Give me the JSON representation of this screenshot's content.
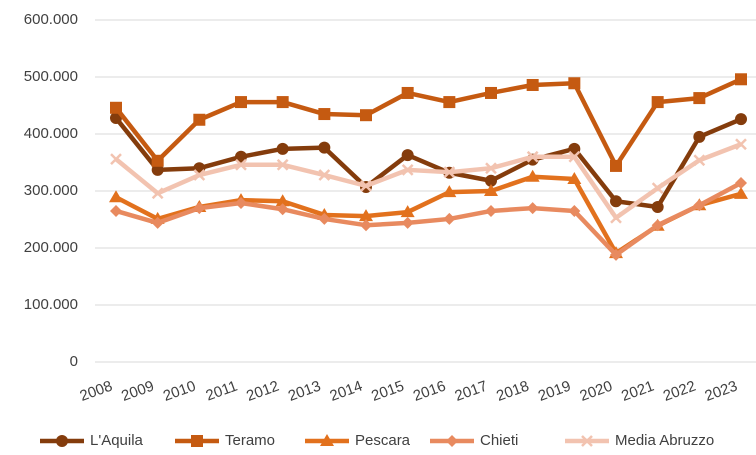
{
  "chart_data": {
    "type": "line",
    "x": [
      "2008",
      "2009",
      "2010",
      "2011",
      "2012",
      "2013",
      "2014",
      "2015",
      "2016",
      "2017",
      "2018",
      "2019",
      "2020",
      "2021",
      "2022",
      "2023"
    ],
    "series": [
      {
        "name": "L'Aquila",
        "color": "#843c0c",
        "marker": "circle",
        "values": [
          428000,
          337000,
          340000,
          360000,
          374000,
          376000,
          307000,
          363000,
          332000,
          318000,
          355000,
          374000,
          282000,
          272000,
          395000,
          426000
        ]
      },
      {
        "name": "Teramo",
        "color": "#c55a11",
        "marker": "square",
        "values": [
          446000,
          353000,
          425000,
          456000,
          456000,
          435000,
          433000,
          472000,
          456000,
          472000,
          486000,
          489000,
          344000,
          456000,
          463000,
          496000
        ]
      },
      {
        "name": "Pescara",
        "color": "#e2711d",
        "marker": "triangle",
        "values": [
          289000,
          251000,
          272000,
          284000,
          282000,
          258000,
          256000,
          263000,
          298000,
          300000,
          325000,
          321000,
          191000,
          239000,
          275000,
          295000
        ]
      },
      {
        "name": "Chieti",
        "color": "#e88a5f",
        "marker": "diamond",
        "values": [
          265000,
          244000,
          270000,
          279000,
          268000,
          251000,
          240000,
          244000,
          251000,
          265000,
          270000,
          265000,
          188000,
          240000,
          275000,
          314000
        ]
      },
      {
        "name": "Media Abruzzo",
        "color": "#f2c3b0",
        "marker": "x",
        "values": [
          356000,
          296000,
          328000,
          346000,
          346000,
          328000,
          309000,
          337000,
          333000,
          340000,
          360000,
          360000,
          253000,
          305000,
          354000,
          382000
        ]
      }
    ],
    "ylim": [
      0,
      600000
    ],
    "yticks": [
      0,
      {
        "value": 100000,
        "label": "100.000"
      },
      {
        "value": 200000,
        "label": "200.000"
      },
      {
        "value": 300000,
        "label": "300.000"
      },
      {
        "value": 400000,
        "label": "400.000"
      },
      {
        "value": 500000,
        "label": "500.000"
      },
      {
        "value": 600000,
        "label": "600.000"
      }
    ],
    "grid": true,
    "legend": "bottom"
  }
}
